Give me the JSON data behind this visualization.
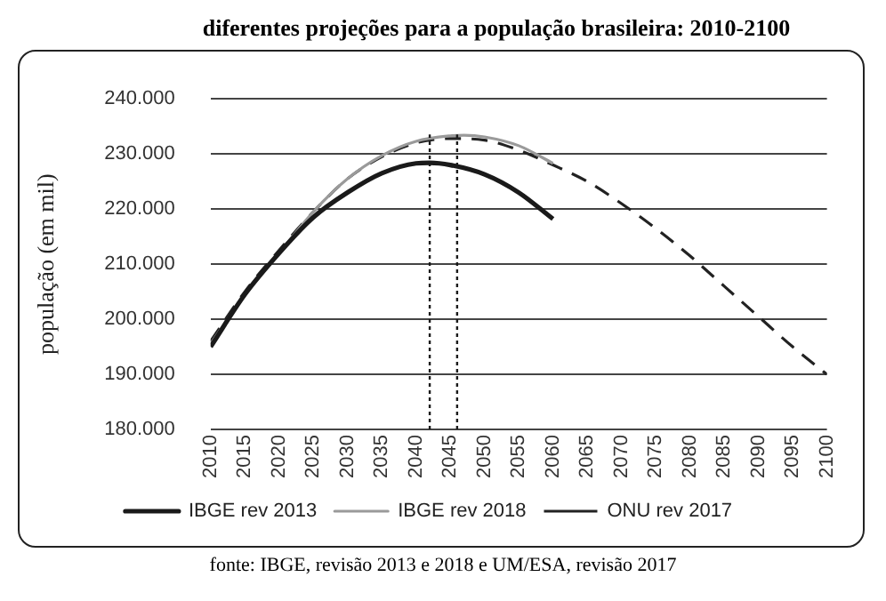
{
  "chart_data": {
    "type": "line",
    "title": "diferentes projeções para a população brasileira: 2010-2100",
    "ylabel": "população (em mil)",
    "annotations": [
      "fonte: IBGE, revisão 2013 e 2018 e UM/ESA, revisão 2017"
    ],
    "series": [
      {
        "name": "IBGE rev 2013",
        "color": "#1a1a1a",
        "line_style": "solid",
        "x": [
          2010,
          2015,
          2020,
          2025,
          2030,
          2035,
          2040,
          2042,
          2045,
          2050,
          2055,
          2060
        ],
        "values": [
          195000,
          204500,
          212000,
          218500,
          223000,
          226500,
          228300,
          228400,
          228000,
          226300,
          223000,
          218200
        ]
      },
      {
        "name": "IBGE rev 2018",
        "color": "#9a9a9a",
        "line_style": "solid",
        "x": [
          2010,
          2015,
          2020,
          2025,
          2030,
          2035,
          2040,
          2045,
          2047,
          2050,
          2055,
          2060
        ],
        "values": [
          195500,
          204500,
          212000,
          219500,
          225500,
          229700,
          232300,
          233300,
          233400,
          233100,
          231500,
          228300
        ]
      },
      {
        "name": "ONU rev 2017",
        "color": "#222222",
        "line_style": "dashed",
        "x": [
          2010,
          2015,
          2020,
          2025,
          2030,
          2035,
          2040,
          2045,
          2050,
          2055,
          2060,
          2065,
          2070,
          2075,
          2080,
          2085,
          2090,
          2095,
          2100
        ],
        "values": [
          196000,
          205000,
          212500,
          219500,
          225500,
          229500,
          232000,
          232800,
          232500,
          230700,
          228000,
          225000,
          221000,
          216500,
          211500,
          206000,
          200500,
          195000,
          190000
        ]
      }
    ],
    "xlim": [
      2010,
      2100
    ],
    "xticks": [
      2010,
      2015,
      2020,
      2025,
      2030,
      2035,
      2040,
      2045,
      2050,
      2055,
      2060,
      2065,
      2070,
      2075,
      2080,
      2085,
      2090,
      2095,
      2100
    ],
    "ylim": [
      180000,
      240000
    ],
    "yticks": [
      {
        "value": 180000,
        "label": "180.000"
      },
      {
        "value": 190000,
        "label": "190.000"
      },
      {
        "value": 200000,
        "label": "200.000"
      },
      {
        "value": 210000,
        "label": "210.000"
      },
      {
        "value": 220000,
        "label": "220.000"
      },
      {
        "value": 230000,
        "label": "230.000"
      },
      {
        "value": 240000,
        "label": "240.000"
      }
    ],
    "ref_lines": [
      {
        "axis": "x",
        "value": 2042,
        "line_style": "dotted",
        "color": "#1a1a1a"
      },
      {
        "axis": "x",
        "value": 2046,
        "line_style": "dotted",
        "color": "#1a1a1a"
      }
    ],
    "grid": "y",
    "legend": "bottom"
  }
}
